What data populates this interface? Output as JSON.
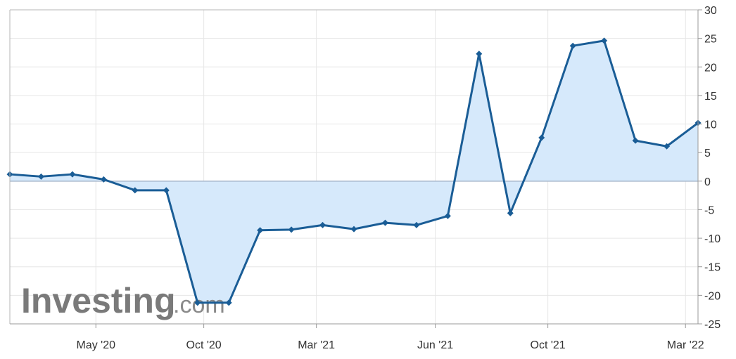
{
  "watermark": {
    "brand": "Investing",
    "suffix": ".com"
  },
  "chart_data": {
    "type": "area",
    "title": "",
    "xlabel": "",
    "ylabel": "",
    "ylim": [
      -25,
      30
    ],
    "yticks": [
      30,
      25,
      20,
      15,
      10,
      5,
      0,
      -5,
      -10,
      -15,
      -20,
      -25
    ],
    "x_tick_labels": [
      "May '20",
      "Oct '20",
      "Mar '21",
      "Jun '21",
      "Oct '21",
      "Mar '22"
    ],
    "grid": true,
    "legend": "none",
    "colors": {
      "line": "#1a5d96",
      "fill": "#d6e9fb",
      "zero_line": "#a8b8cc",
      "grid": "#e6e6e6",
      "axis": "#999999"
    },
    "series": [
      {
        "values": [
          1.2,
          0.8,
          1.2,
          0.3,
          -1.6,
          -1.6,
          -21.3,
          -21.3,
          -8.6,
          -8.5,
          -7.7,
          -8.4,
          -7.3,
          -7.7,
          -6.1,
          22.3,
          -5.6,
          7.6,
          23.7,
          24.6,
          7.1,
          6.1,
          10.2
        ]
      }
    ]
  }
}
